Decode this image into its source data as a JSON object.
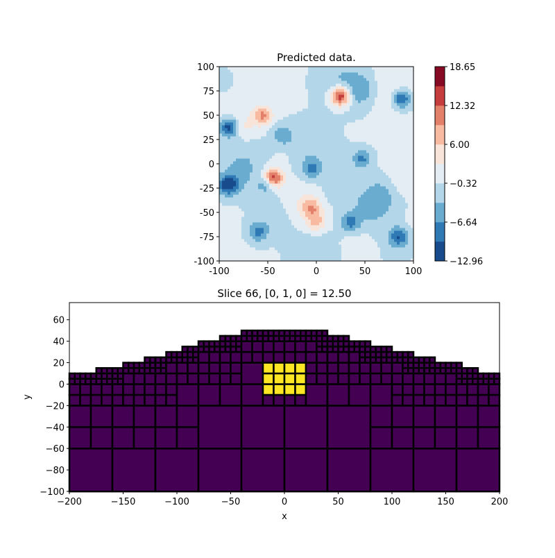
{
  "chart_data": [
    {
      "type": "heatmap",
      "subtype": "filled-contour",
      "title": "Predicted data.",
      "xlim": [
        -100,
        100
      ],
      "ylim": [
        -100,
        100
      ],
      "xticks": [
        "-100",
        "-50",
        "0",
        "50",
        "100"
      ],
      "yticks": [
        "-100",
        "-75",
        "-50",
        "-25",
        "0",
        "25",
        "50",
        "75",
        "100"
      ],
      "colormap": "RdBu_r",
      "levels": [
        -12.96,
        -9.8,
        -6.64,
        -3.48,
        -0.32,
        2.84,
        6.0,
        9.16,
        12.32,
        15.49,
        18.65
      ],
      "level_colors": [
        "#174b8c",
        "#2f79b5",
        "#6aacd0",
        "#b3d6e8",
        "#e3edf3",
        "#f9e4d9",
        "#f8bba1",
        "#e3806a",
        "#c53d3d",
        "#870a24"
      ],
      "colorbar_ticks": [
        "18.65",
        "12.32",
        "6.00",
        "−0.32",
        "−6.64",
        "−12.96"
      ],
      "extrema": [
        {
          "x": 25,
          "y": 70,
          "value": 17
        },
        {
          "x": -45,
          "y": -15,
          "value": 18
        },
        {
          "x": -55,
          "y": 50,
          "value": 10
        },
        {
          "x": -5,
          "y": -45,
          "value": 8
        },
        {
          "x": 0,
          "y": -60,
          "value": 7
        },
        {
          "x": -90,
          "y": 38,
          "value": -12
        },
        {
          "x": 88,
          "y": 68,
          "value": -11
        },
        {
          "x": -92,
          "y": -22,
          "value": -10
        },
        {
          "x": -50,
          "y": -20,
          "value": -9
        },
        {
          "x": 85,
          "y": -75,
          "value": -9
        },
        {
          "x": 47,
          "y": 5,
          "value": -8
        },
        {
          "x": 35,
          "y": -60,
          "value": -8
        },
        {
          "x": -35,
          "y": 30,
          "value": -6
        },
        {
          "x": -5,
          "y": -5,
          "value": -7
        },
        {
          "x": -60,
          "y": -70,
          "value": -7
        }
      ]
    },
    {
      "type": "mesh",
      "title": "Slice 66, [0, 1, 0] = 12.50",
      "xlabel": "x",
      "ylabel": "y",
      "xlim": [
        -200,
        200
      ],
      "ylim": [
        -100,
        76
      ],
      "xticks": [
        "−200",
        "−150",
        "−100",
        "−50",
        "0",
        "50",
        "100",
        "150",
        "200"
      ],
      "yticks": [
        "−100",
        "−80",
        "−60",
        "−40",
        "−20",
        "0",
        "20",
        "40",
        "60"
      ],
      "background_color": "#440154",
      "highlight_color": "#fde725",
      "highlight_region": {
        "x": [
          -20,
          20
        ],
        "y": [
          -10,
          20
        ]
      },
      "surface_profile": [
        {
          "x": [
            -200,
            -175
          ],
          "top": 8
        },
        {
          "x": [
            -175,
            -150
          ],
          "top": 13
        },
        {
          "x": [
            -150,
            -130
          ],
          "top": 18
        },
        {
          "x": [
            -130,
            -110
          ],
          "top": 23
        },
        {
          "x": [
            -110,
            -95
          ],
          "top": 28
        },
        {
          "x": [
            -95,
            -80
          ],
          "top": 33
        },
        {
          "x": [
            -80,
            -60
          ],
          "top": 38
        },
        {
          "x": [
            -60,
            -40
          ],
          "top": 43
        },
        {
          "x": [
            -40,
            40
          ],
          "top": 48
        },
        {
          "x": [
            40,
            60
          ],
          "top": 43
        },
        {
          "x": [
            60,
            80
          ],
          "top": 38
        },
        {
          "x": [
            80,
            100
          ],
          "top": 33
        },
        {
          "x": [
            100,
            120
          ],
          "top": 28
        },
        {
          "x": [
            120,
            140
          ],
          "top": 23
        },
        {
          "x": [
            140,
            165
          ],
          "top": 18
        },
        {
          "x": [
            165,
            180
          ],
          "top": 13
        },
        {
          "x": [
            180,
            200
          ],
          "top": 8
        }
      ]
    }
  ]
}
